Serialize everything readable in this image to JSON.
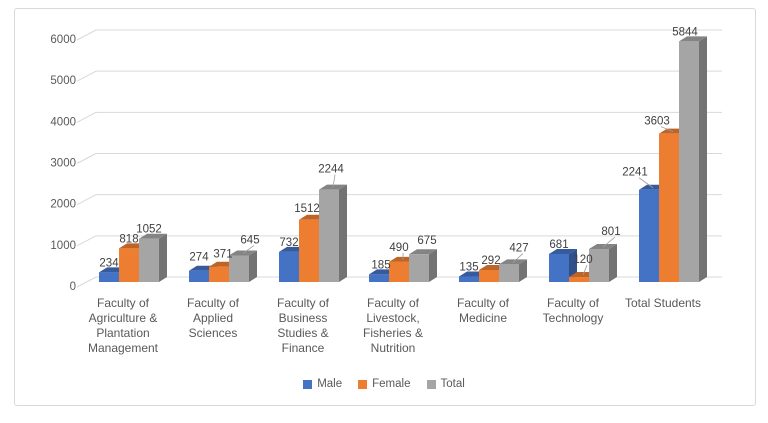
{
  "window": {
    "background": "#ffffff",
    "border_color": "#d9d9d9"
  },
  "chart_data": {
    "type": "bar",
    "style": "3d-clustered-column",
    "title": "",
    "categories": [
      "Faculty of Agriculture & Plantation Management",
      "Faculty of Applied Sciences",
      "Faculty of Business Studies & Finance",
      "Faculty of Livestock, Fisheries & Nutrition",
      "Faculty of Medicine",
      "Faculty of Technology",
      "Total Students"
    ],
    "category_lines": [
      [
        "Faculty of",
        "Agriculture &",
        "Plantation",
        "Management"
      ],
      [
        "Faculty of",
        "Applied",
        "Sciences"
      ],
      [
        "Faculty of",
        "Business",
        "Studies &",
        "Finance"
      ],
      [
        "Faculty of",
        "Livestock,",
        "Fisheries &",
        "Nutrition"
      ],
      [
        "Faculty of",
        "Medicine"
      ],
      [
        "Faculty of",
        "Technology"
      ],
      [
        "Total Students"
      ]
    ],
    "series": [
      {
        "name": "Male",
        "color": "#4472C4",
        "values": [
          234,
          274,
          732,
          185,
          135,
          681,
          2241
        ]
      },
      {
        "name": "Female",
        "color": "#ED7D31",
        "values": [
          818,
          371,
          1512,
          490,
          292,
          120,
          3603
        ]
      },
      {
        "name": "Total",
        "color": "#A5A5A5",
        "values": [
          1052,
          645,
          2244,
          675,
          427,
          801,
          5844
        ]
      }
    ],
    "data_labels_visible": true,
    "y_axis": {
      "min": 0,
      "max": 6000,
      "step": 1000,
      "tick_labels": [
        "0",
        "1000",
        "2000",
        "3000",
        "4000",
        "5000",
        "6000"
      ]
    },
    "legend": {
      "position": "bottom",
      "entries": [
        "Male",
        "Female",
        "Total"
      ]
    },
    "grid": true,
    "grid_color": "#d9d9d9",
    "axis_text_color": "#595959",
    "value_label_color": "#404040",
    "leader_line_color": "#9e9e9e"
  }
}
